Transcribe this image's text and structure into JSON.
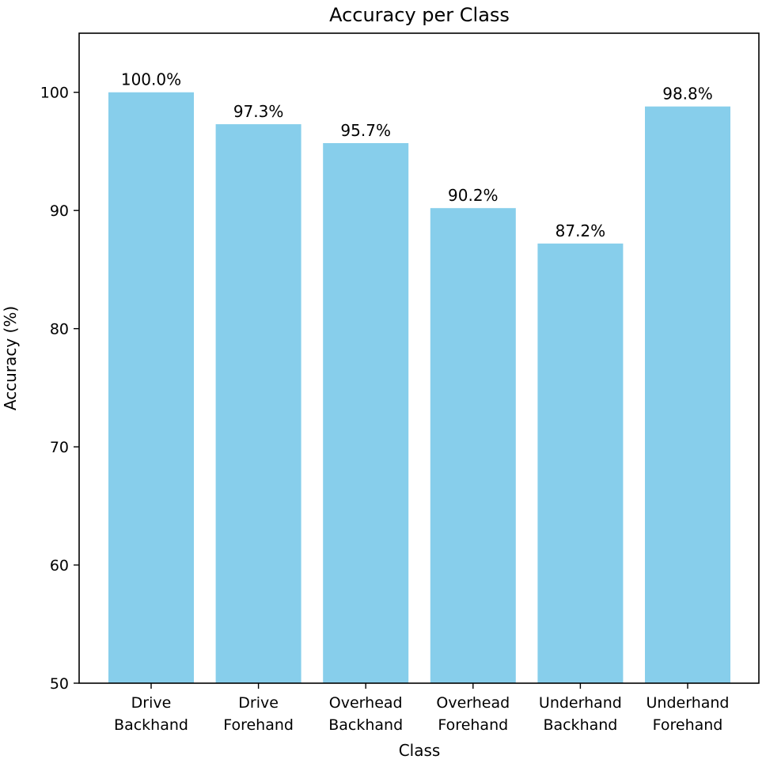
{
  "chart_data": {
    "type": "bar",
    "title": "Accuracy per Class",
    "xlabel": "Class",
    "ylabel": "Accuracy (%)",
    "ylim": [
      50,
      105
    ],
    "yticks": [
      50,
      60,
      70,
      80,
      90,
      100
    ],
    "grid": false,
    "categories": [
      [
        "Drive",
        "Backhand"
      ],
      [
        "Drive",
        "Forehand"
      ],
      [
        "Overhead",
        "Backhand"
      ],
      [
        "Overhead",
        "Forehand"
      ],
      [
        "Underhand",
        "Backhand"
      ],
      [
        "Underhand",
        "Forehand"
      ]
    ],
    "values": [
      100.0,
      97.3,
      95.7,
      90.2,
      87.2,
      98.8
    ],
    "data_labels": [
      "100.0%",
      "97.3%",
      "95.7%",
      "90.2%",
      "87.2%",
      "98.8%"
    ],
    "bar_color": "#87ceeb"
  }
}
